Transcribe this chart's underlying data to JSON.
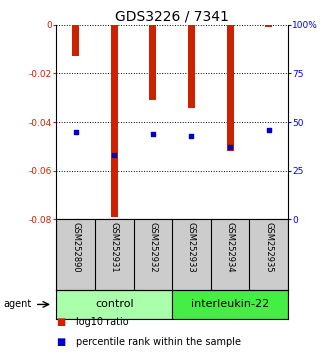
{
  "title": "GDS3226 / 7341",
  "samples": [
    "GSM252890",
    "GSM252931",
    "GSM252932",
    "GSM252933",
    "GSM252934",
    "GSM252935"
  ],
  "log10_ratio": [
    -0.013,
    -0.079,
    -0.031,
    -0.034,
    -0.052,
    -0.001
  ],
  "percentile_rank": [
    45,
    33,
    44,
    43,
    37,
    46
  ],
  "ylim_left": [
    -0.08,
    0
  ],
  "ylim_right": [
    0,
    100
  ],
  "yticks_left": [
    0,
    -0.02,
    -0.04,
    -0.06,
    -0.08
  ],
  "yticks_right": [
    0,
    25,
    50,
    75,
    100
  ],
  "ytick_labels_left": [
    "0",
    "-0.02",
    "-0.04",
    "-0.06",
    "-0.08"
  ],
  "ytick_labels_right": [
    "0",
    "25",
    "50",
    "75",
    "100%"
  ],
  "groups": [
    {
      "label": "control",
      "n": 3,
      "color": "#AAFFAA"
    },
    {
      "label": "interleukin-22",
      "n": 3,
      "color": "#44EE44"
    }
  ],
  "bar_color": "#CC2200",
  "square_color": "#0000CC",
  "bar_width": 0.18,
  "title_fontsize": 10,
  "tick_fontsize": 6.5,
  "sample_fontsize": 6,
  "group_fontsize": 8,
  "legend_fontsize": 7,
  "agent_label": "agent",
  "background_color": "#ffffff",
  "grid_linestyle": ":",
  "grid_linewidth": 0.7
}
